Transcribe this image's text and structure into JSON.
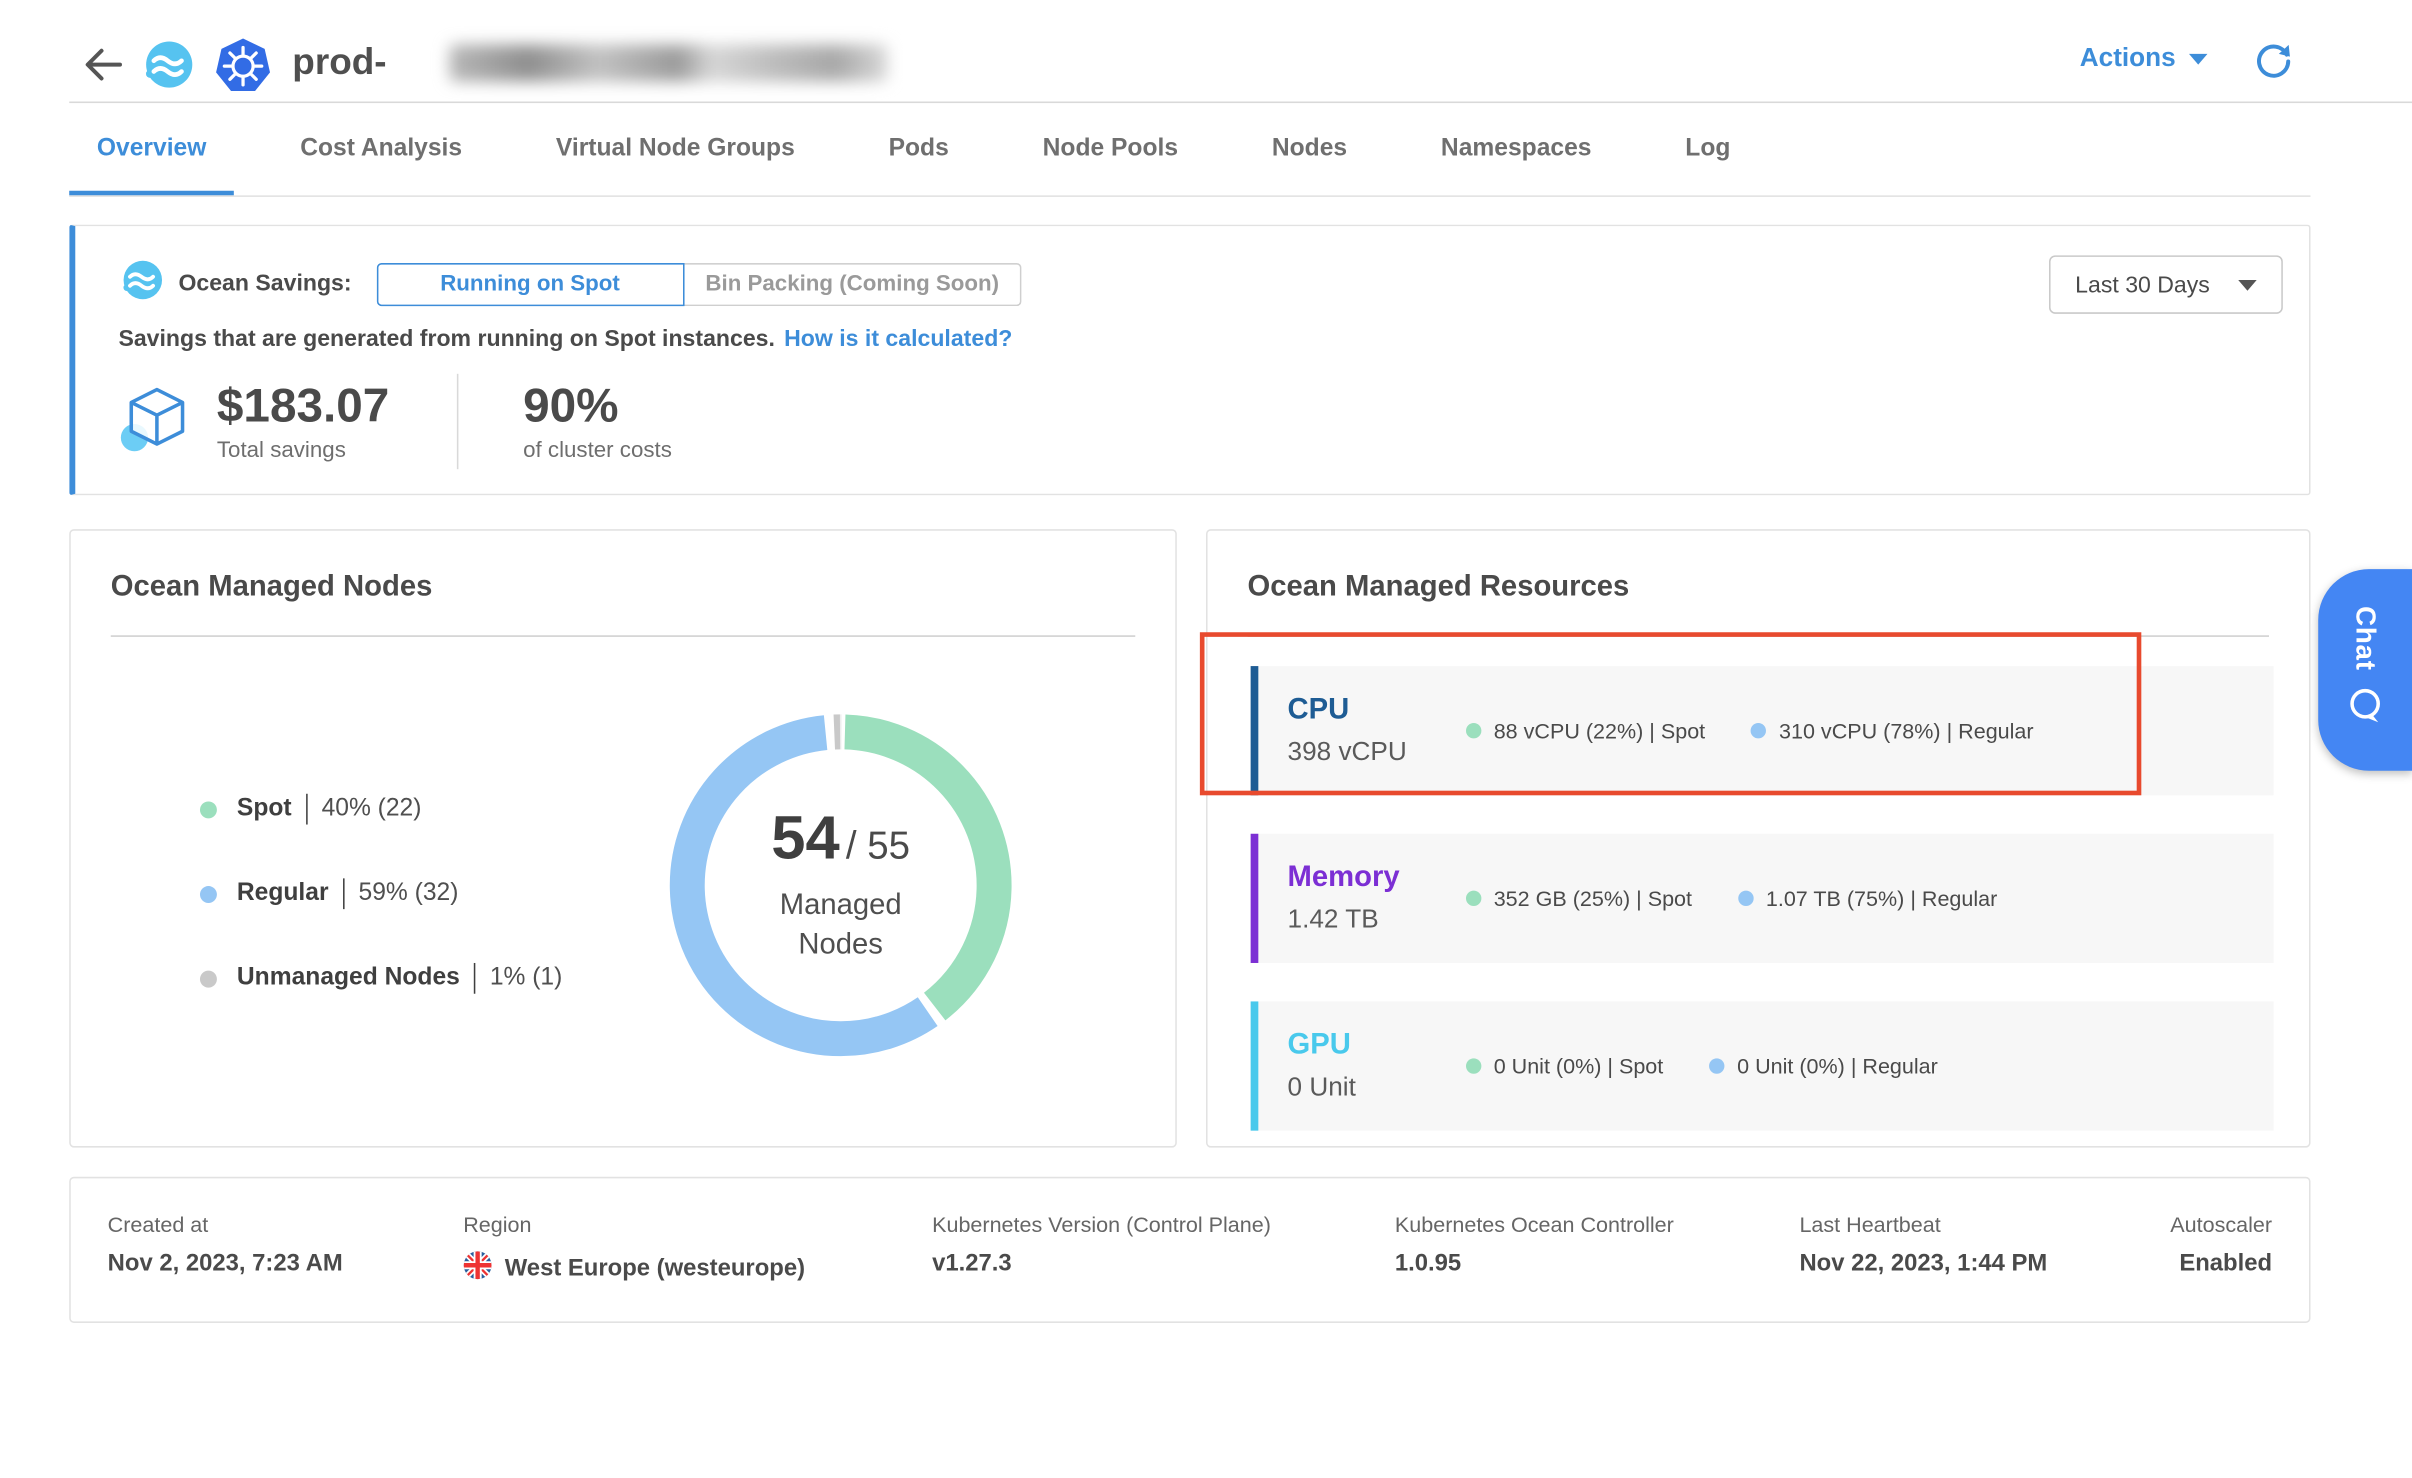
{
  "app": {
    "accent_blue": "#3d8dd9"
  },
  "header": {
    "title": "prod-",
    "actions_label": "Actions"
  },
  "tabs": [
    {
      "label": "Overview",
      "active": true
    },
    {
      "label": "Cost Analysis",
      "active": false
    },
    {
      "label": "Virtual Node Groups",
      "active": false
    },
    {
      "label": "Pods",
      "active": false
    },
    {
      "label": "Node Pools",
      "active": false
    },
    {
      "label": "Nodes",
      "active": false
    },
    {
      "label": "Namespaces",
      "active": false
    },
    {
      "label": "Log",
      "active": false
    }
  ],
  "savings": {
    "label": "Ocean Savings:",
    "toggle": {
      "active": "Running on Spot",
      "disabled": "Bin Packing (Coming Soon)"
    },
    "period_select": "Last 30 Days",
    "description": "Savings that are generated from running on Spot instances.",
    "link": "How is it calculated?",
    "total": {
      "value": "$183.07",
      "label": "Total savings"
    },
    "percent": {
      "value": "90%",
      "label": "of cluster costs"
    }
  },
  "managed_nodes": {
    "title": "Ocean Managed Nodes",
    "legend": [
      {
        "label": "Spot",
        "value": "40% (22)",
        "color": "#9bdfbd"
      },
      {
        "label": "Regular",
        "value": "59% (32)",
        "color": "#95c6f4"
      },
      {
        "label": "Unmanaged Nodes",
        "value": "1% (1)",
        "color": "#c9c9c9"
      }
    ],
    "center": {
      "value": "54",
      "total": "/ 55",
      "label": "Managed Nodes"
    }
  },
  "chart_data": {
    "type": "pie",
    "donut": true,
    "title": "Ocean Managed Nodes",
    "labels": [
      "Spot",
      "Regular",
      "Unmanaged Nodes"
    ],
    "counts": [
      22,
      32,
      1
    ],
    "percentages": [
      40,
      59,
      1
    ],
    "colors": [
      "#9bdfbd",
      "#95c6f4",
      "#c9c9c9"
    ],
    "center_text": "54 / 55 Managed Nodes",
    "legend_position": "left"
  },
  "resources": {
    "title": "Ocean Managed Resources",
    "spot_dot_color": "#9bdfbd",
    "regular_dot_color": "#95c6f4",
    "rows": [
      {
        "name": "CPU",
        "value": "398 vCPU",
        "accent": "#1e5c94",
        "spot": "88 vCPU (22%) | Spot",
        "regular": "310 vCPU (78%) | Regular",
        "highlighted": true
      },
      {
        "name": "Memory",
        "value": "1.42 TB",
        "accent": "#7c2fd4",
        "spot": "352 GB (25%) | Spot",
        "regular": "1.07 TB (75%) | Regular",
        "highlighted": false
      },
      {
        "name": "GPU",
        "value": "0 Unit",
        "accent": "#49c9ec",
        "spot": "0 Unit (0%) | Spot",
        "regular": "0 Unit (0%) | Regular",
        "highlighted": false
      }
    ]
  },
  "footer": {
    "items": [
      {
        "label": "Created at",
        "value": "Nov 2, 2023, 7:23 AM"
      },
      {
        "label": "Region",
        "value": "West Europe (westeurope)",
        "icon": "uk-flag-icon"
      },
      {
        "label": "Kubernetes Version (Control Plane)",
        "value": "v1.27.3"
      },
      {
        "label": "Kubernetes Ocean Controller",
        "value": "1.0.95"
      },
      {
        "label": "Last Heartbeat",
        "value": "Nov 22, 2023, 1:44 PM"
      },
      {
        "label": "Autoscaler",
        "value": "Enabled"
      }
    ]
  },
  "chat": {
    "label": "Chat"
  },
  "annotation": {
    "color": "#e84a2e"
  }
}
